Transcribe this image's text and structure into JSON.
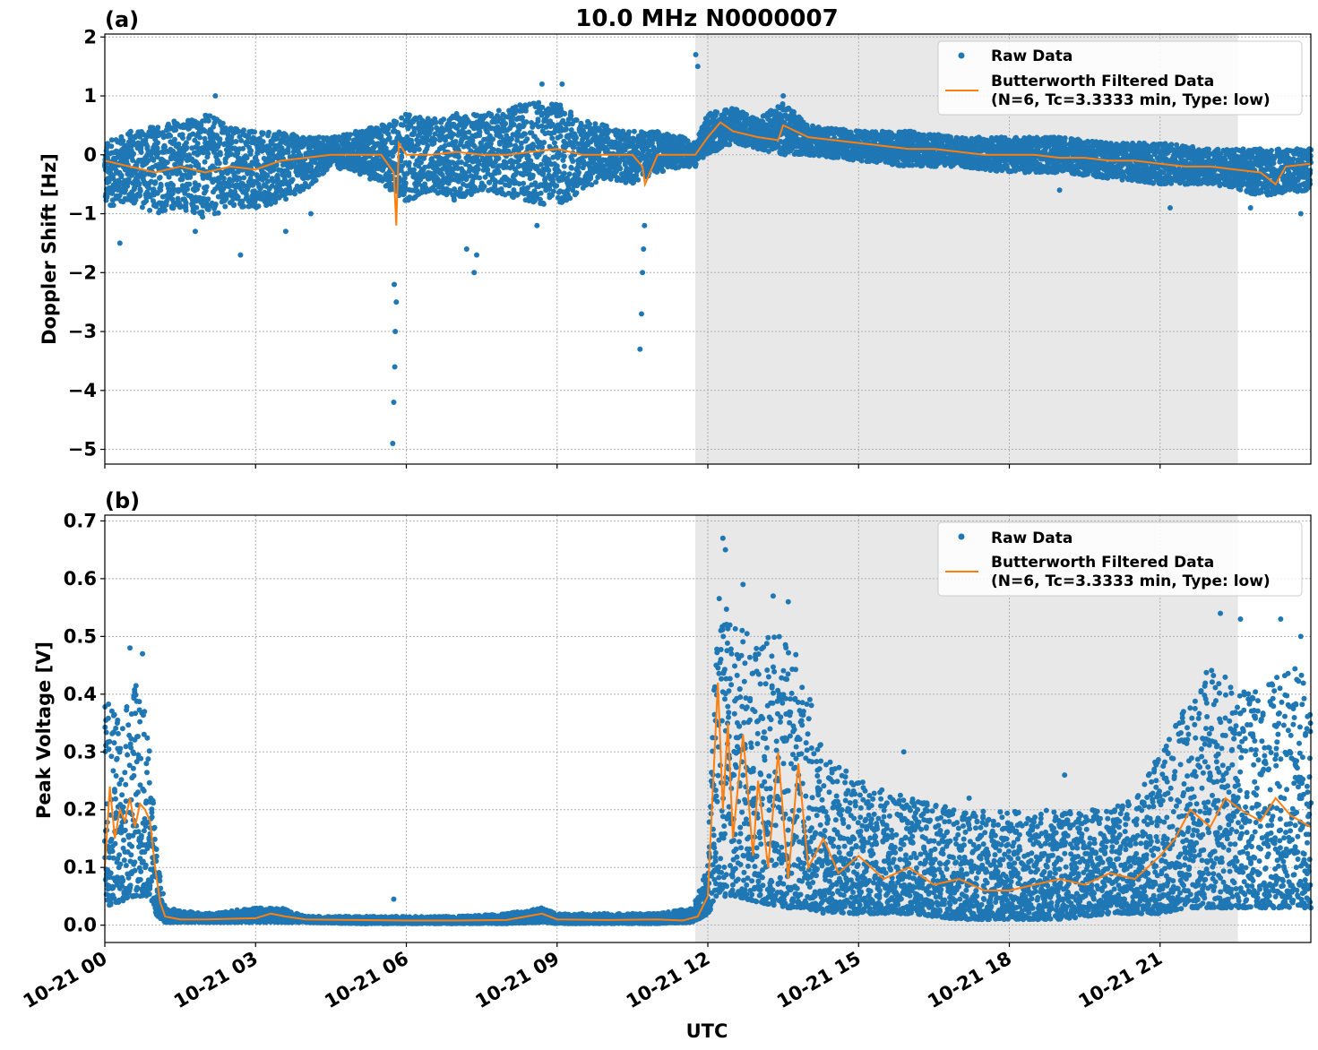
{
  "title": "10.0 MHz N0000007",
  "xlabel": "UTC",
  "x_ticks": [
    "10-21 00",
    "10-21 03",
    "10-21 06",
    "10-21 09",
    "10-21 12",
    "10-21 15",
    "10-21 18",
    "10-21 21"
  ],
  "colors": {
    "raw": "#1f77b4",
    "filtered": "#ff7f0e",
    "shade": "#e8e8e8",
    "grid": "#b0b0b0"
  },
  "legend": {
    "raw_label": "Raw Data",
    "filtered_label_1": "Butterworth Filtered Data",
    "filtered_label_2": "(N=6, Tc=3.3333 min, Type: low)"
  },
  "panels": [
    {
      "label": "(a)",
      "ylabel": "Doppler Shift [Hz]"
    },
    {
      "label": "(b)",
      "ylabel": "Peak Voltage [V]"
    }
  ],
  "chart_data": [
    {
      "type": "scatter",
      "panel": "(a)",
      "title": "10.0 MHz N0000007",
      "xlabel": "",
      "ylabel": "Doppler Shift [Hz]",
      "x_unit": "hours UTC on 10-21",
      "xlim": [
        0,
        24
      ],
      "ylim": [
        -5.25,
        2.05
      ],
      "yticks": [
        2,
        1,
        0,
        -1,
        -2,
        -3,
        -4,
        -5
      ],
      "ytick_labels": [
        "2",
        "1",
        "0",
        "−1",
        "−2",
        "−3",
        "−4",
        "−5"
      ],
      "grid": true,
      "legend_position": "top-right",
      "shaded_span": [
        11.75,
        22.55
      ],
      "series": [
        {
          "name": "Raw Data",
          "kind": "points",
          "band": [
            [
              0,
              -0.9,
              0.2
            ],
            [
              0.5,
              -0.8,
              0.4
            ],
            [
              1.0,
              -1.0,
              0.5
            ],
            [
              1.5,
              -0.9,
              0.6
            ],
            [
              2.0,
              -1.1,
              0.7
            ],
            [
              2.5,
              -0.9,
              0.5
            ],
            [
              3.0,
              -0.9,
              0.4
            ],
            [
              3.5,
              -0.8,
              0.4
            ],
            [
              4.0,
              -0.6,
              0.3
            ],
            [
              4.5,
              -0.2,
              0.3
            ],
            [
              5.0,
              -0.3,
              0.4
            ],
            [
              5.5,
              -0.5,
              0.5
            ],
            [
              6.0,
              -0.8,
              0.7
            ],
            [
              6.5,
              -0.6,
              0.6
            ],
            [
              7.0,
              -0.8,
              0.7
            ],
            [
              7.5,
              -0.6,
              0.7
            ],
            [
              8.0,
              -0.7,
              0.8
            ],
            [
              8.5,
              -0.8,
              0.9
            ],
            [
              9.0,
              -0.9,
              0.9
            ],
            [
              9.5,
              -0.6,
              0.6
            ],
            [
              10.0,
              -0.4,
              0.5
            ],
            [
              10.5,
              -0.5,
              0.4
            ],
            [
              11.0,
              -0.3,
              0.4
            ],
            [
              11.5,
              -0.2,
              0.3
            ],
            [
              11.75,
              -0.2,
              0.2
            ],
            [
              12.0,
              0.0,
              0.7
            ],
            [
              12.5,
              0.2,
              0.8
            ],
            [
              13.0,
              0.1,
              0.6
            ],
            [
              13.5,
              0.0,
              0.9
            ],
            [
              14.0,
              0.0,
              0.5
            ],
            [
              15.0,
              -0.1,
              0.4
            ],
            [
              16.0,
              -0.2,
              0.4
            ],
            [
              17.0,
              -0.2,
              0.3
            ],
            [
              18.0,
              -0.3,
              0.3
            ],
            [
              19.0,
              -0.3,
              0.3
            ],
            [
              20.0,
              -0.4,
              0.2
            ],
            [
              21.0,
              -0.5,
              0.2
            ],
            [
              22.0,
              -0.5,
              0.1
            ],
            [
              23.0,
              -0.7,
              0.1
            ],
            [
              24.0,
              -0.6,
              0.1
            ]
          ],
          "outliers": [
            [
              0.3,
              -1.5
            ],
            [
              1.8,
              -1.3
            ],
            [
              2.7,
              -1.7
            ],
            [
              3.6,
              -1.3
            ],
            [
              4.1,
              -1.0
            ],
            [
              5.73,
              -4.9
            ],
            [
              5.75,
              -4.2
            ],
            [
              5.77,
              -3.6
            ],
            [
              5.78,
              -3.0
            ],
            [
              5.8,
              -2.5
            ],
            [
              5.76,
              -2.2
            ],
            [
              7.2,
              -1.6
            ],
            [
              7.35,
              -2.0
            ],
            [
              7.4,
              -1.7
            ],
            [
              8.6,
              -1.2
            ],
            [
              8.7,
              1.2
            ],
            [
              9.1,
              1.2
            ],
            [
              10.65,
              -3.3
            ],
            [
              10.68,
              -2.7
            ],
            [
              10.7,
              -2.0
            ],
            [
              10.72,
              -1.6
            ],
            [
              10.74,
              -1.2
            ],
            [
              11.76,
              1.7
            ],
            [
              11.8,
              1.5
            ],
            [
              13.5,
              1.0
            ],
            [
              19.0,
              -0.6
            ],
            [
              21.2,
              -0.9
            ],
            [
              22.8,
              -0.9
            ],
            [
              23.8,
              -1.0
            ],
            [
              2.2,
              1.0
            ]
          ]
        },
        {
          "name": "Butterworth Filtered Data (N=6, Tc=3.3333 min, Type: low)",
          "kind": "line",
          "x": [
            0,
            0.5,
            1.0,
            1.5,
            2.0,
            2.5,
            3.0,
            3.5,
            4.0,
            4.5,
            5.0,
            5.5,
            5.75,
            5.8,
            5.85,
            6.0,
            6.5,
            7.0,
            7.5,
            8.0,
            8.5,
            9.0,
            9.5,
            10.0,
            10.5,
            10.7,
            10.75,
            11.0,
            11.5,
            11.75,
            12.0,
            12.25,
            12.5,
            13.0,
            13.4,
            13.5,
            14.0,
            14.5,
            15.0,
            15.5,
            16.0,
            16.5,
            17.0,
            17.5,
            18.0,
            18.5,
            19.0,
            19.5,
            20.0,
            20.5,
            21.0,
            21.5,
            22.0,
            22.5,
            23.0,
            23.3,
            23.5,
            24.0
          ],
          "y": [
            -0.1,
            -0.2,
            -0.3,
            -0.2,
            -0.3,
            -0.2,
            -0.25,
            -0.1,
            -0.05,
            0.0,
            0.0,
            0.0,
            -0.3,
            -1.2,
            0.2,
            0.0,
            0.0,
            0.05,
            0.0,
            0.0,
            0.05,
            0.1,
            0.0,
            0.0,
            0.0,
            -0.2,
            -0.5,
            0.0,
            0.0,
            0.0,
            0.3,
            0.55,
            0.4,
            0.3,
            0.25,
            0.5,
            0.3,
            0.25,
            0.2,
            0.15,
            0.1,
            0.1,
            0.05,
            0.0,
            0.0,
            0.0,
            -0.05,
            -0.05,
            -0.1,
            -0.1,
            -0.15,
            -0.2,
            -0.2,
            -0.25,
            -0.3,
            -0.5,
            -0.2,
            -0.15
          ]
        }
      ]
    },
    {
      "type": "scatter",
      "panel": "(b)",
      "title": "",
      "xlabel": "UTC",
      "ylabel": "Peak Voltage [V]",
      "x_unit": "hours UTC on 10-21",
      "xlim": [
        0,
        24
      ],
      "ylim": [
        -0.03,
        0.71
      ],
      "yticks": [
        0.0,
        0.1,
        0.2,
        0.3,
        0.4,
        0.5,
        0.6,
        0.7
      ],
      "ytick_labels": [
        "0.0",
        "0.1",
        "0.2",
        "0.3",
        "0.4",
        "0.5",
        "0.6",
        "0.7"
      ],
      "grid": true,
      "legend_position": "top-right",
      "shaded_span": [
        11.75,
        22.55
      ],
      "series": [
        {
          "name": "Raw Data",
          "kind": "points",
          "band": [
            [
              0,
              0.03,
              0.4
            ],
            [
              0.3,
              0.04,
              0.35
            ],
            [
              0.6,
              0.05,
              0.42
            ],
            [
              0.9,
              0.05,
              0.35
            ],
            [
              1.0,
              0.02,
              0.15
            ],
            [
              1.2,
              0.005,
              0.03
            ],
            [
              2.0,
              0.005,
              0.02
            ],
            [
              3.0,
              0.005,
              0.03
            ],
            [
              3.5,
              0.005,
              0.03
            ],
            [
              4.0,
              0.005,
              0.015
            ],
            [
              5.0,
              0.003,
              0.015
            ],
            [
              6.0,
              0.003,
              0.015
            ],
            [
              7.0,
              0.003,
              0.015
            ],
            [
              8.0,
              0.003,
              0.02
            ],
            [
              8.7,
              0.005,
              0.03
            ],
            [
              9.0,
              0.003,
              0.02
            ],
            [
              10.0,
              0.003,
              0.02
            ],
            [
              11.0,
              0.003,
              0.02
            ],
            [
              11.7,
              0.005,
              0.03
            ],
            [
              12.0,
              0.02,
              0.1
            ],
            [
              12.2,
              0.05,
              0.6
            ],
            [
              12.5,
              0.05,
              0.52
            ],
            [
              13.0,
              0.04,
              0.5
            ],
            [
              13.5,
              0.03,
              0.5
            ],
            [
              13.9,
              0.03,
              0.45
            ],
            [
              14.3,
              0.02,
              0.3
            ],
            [
              15.0,
              0.02,
              0.25
            ],
            [
              16.0,
              0.02,
              0.22
            ],
            [
              17.0,
              0.01,
              0.2
            ],
            [
              18.0,
              0.01,
              0.2
            ],
            [
              19.0,
              0.01,
              0.2
            ],
            [
              20.0,
              0.02,
              0.2
            ],
            [
              20.5,
              0.02,
              0.22
            ],
            [
              21.0,
              0.02,
              0.3
            ],
            [
              21.5,
              0.03,
              0.38
            ],
            [
              22.0,
              0.03,
              0.45
            ],
            [
              22.5,
              0.03,
              0.42
            ],
            [
              23.0,
              0.03,
              0.4
            ],
            [
              23.5,
              0.03,
              0.45
            ],
            [
              24.0,
              0.03,
              0.45
            ]
          ],
          "outliers": [
            [
              0.5,
              0.48
            ],
            [
              0.75,
              0.47
            ],
            [
              5.75,
              0.045
            ],
            [
              12.3,
              0.67
            ],
            [
              12.35,
              0.65
            ],
            [
              12.7,
              0.59
            ],
            [
              13.3,
              0.57
            ],
            [
              13.6,
              0.56
            ],
            [
              15.9,
              0.3
            ],
            [
              22.2,
              0.54
            ],
            [
              22.6,
              0.53
            ],
            [
              23.4,
              0.53
            ],
            [
              23.8,
              0.5
            ],
            [
              17.2,
              0.22
            ],
            [
              19.1,
              0.26
            ]
          ]
        },
        {
          "name": "Butterworth Filtered Data (N=6, Tc=3.3333 min, Type: low)",
          "kind": "line",
          "x": [
            0,
            0.1,
            0.2,
            0.3,
            0.4,
            0.5,
            0.6,
            0.7,
            0.8,
            0.9,
            1.0,
            1.1,
            1.2,
            1.5,
            2.0,
            3.0,
            3.3,
            3.6,
            4.0,
            5.0,
            6.0,
            7.0,
            8.0,
            8.7,
            9.0,
            10.0,
            11.0,
            11.5,
            11.8,
            12.0,
            12.2,
            12.3,
            12.4,
            12.5,
            12.7,
            12.9,
            13.0,
            13.2,
            13.4,
            13.6,
            13.8,
            14.0,
            14.3,
            14.6,
            15.0,
            15.5,
            16.0,
            16.5,
            17.0,
            17.5,
            18.0,
            18.5,
            19.0,
            19.5,
            20.0,
            20.5,
            21.0,
            21.3,
            21.6,
            22.0,
            22.3,
            22.6,
            23.0,
            23.3,
            23.6,
            24.0
          ],
          "y": [
            0.1,
            0.24,
            0.15,
            0.2,
            0.18,
            0.22,
            0.17,
            0.21,
            0.2,
            0.18,
            0.1,
            0.04,
            0.015,
            0.01,
            0.01,
            0.012,
            0.02,
            0.015,
            0.01,
            0.009,
            0.008,
            0.008,
            0.009,
            0.02,
            0.01,
            0.009,
            0.01,
            0.008,
            0.015,
            0.05,
            0.42,
            0.2,
            0.35,
            0.15,
            0.33,
            0.12,
            0.25,
            0.1,
            0.3,
            0.08,
            0.28,
            0.1,
            0.15,
            0.09,
            0.12,
            0.08,
            0.1,
            0.07,
            0.08,
            0.06,
            0.06,
            0.07,
            0.08,
            0.07,
            0.09,
            0.08,
            0.12,
            0.15,
            0.2,
            0.17,
            0.22,
            0.2,
            0.18,
            0.22,
            0.19,
            0.17
          ]
        }
      ]
    }
  ]
}
